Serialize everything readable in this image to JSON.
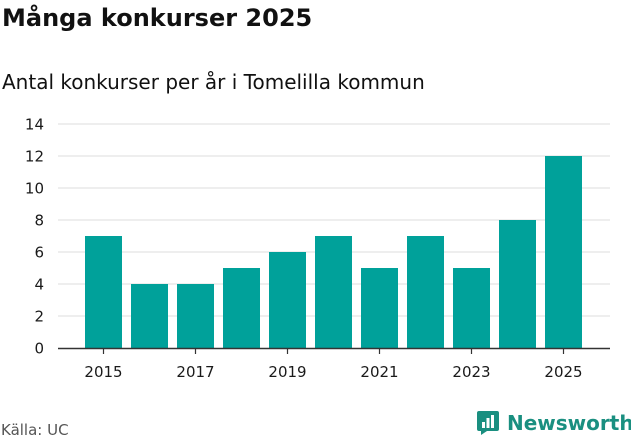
{
  "header": {
    "title": "Många konkurser 2025",
    "subtitle": "Antal konkurser per år i Tomelilla kommun"
  },
  "footer": {
    "source": "Källa: UC",
    "brand": "Newsworthy",
    "brand_icon": "newsworthy-logo-icon"
  },
  "colors": {
    "bar": "#00a19a",
    "grid": "#dddddd",
    "axis": "#333333",
    "brand": "#1a8f80"
  },
  "chart_data": {
    "type": "bar",
    "categories": [
      "2015",
      "2016",
      "2017",
      "2018",
      "2019",
      "2020",
      "2021",
      "2022",
      "2023",
      "2024",
      "2025"
    ],
    "values": [
      7,
      4,
      4,
      5,
      6,
      7,
      5,
      7,
      5,
      8,
      12
    ],
    "x_tick_labels": [
      "2015",
      "2017",
      "2019",
      "2021",
      "2023",
      "2025"
    ],
    "y_ticks": [
      0,
      2,
      4,
      6,
      8,
      10,
      12,
      14
    ],
    "ylim": [
      0,
      14
    ],
    "title": "Många konkurser 2025",
    "subtitle": "Antal konkurser per år i Tomelilla kommun",
    "xlabel": "",
    "ylabel": "",
    "grid": true,
    "legend": "none"
  }
}
